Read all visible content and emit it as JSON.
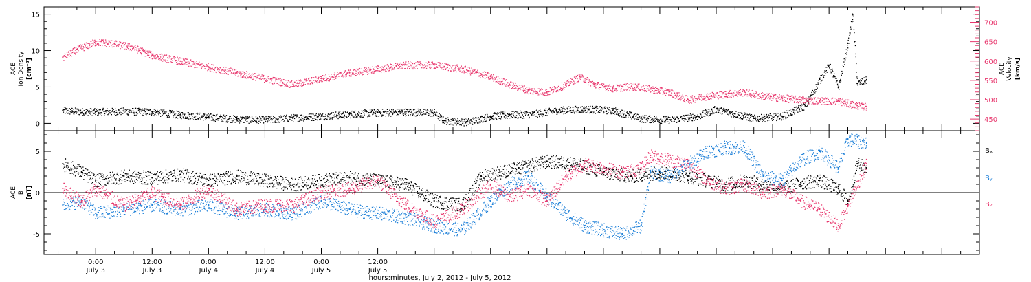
{
  "chart_data": [
    {
      "panel": "plasma",
      "type": "scatter",
      "left_axis": {
        "title": [
          "ACE",
          "Ion Density",
          "[cm⁻³]"
        ],
        "range": [
          -1,
          16
        ],
        "ticks": [
          "0",
          "5",
          "10",
          "15"
        ]
      },
      "right_axis": {
        "title": [
          "ACE",
          "Velocity",
          "[km/s]"
        ],
        "range": [
          420,
          740
        ],
        "ticks": [
          "450",
          "500",
          "550",
          "600",
          "650",
          "700"
        ],
        "color": "#e8386e"
      },
      "series": [
        {
          "color": "#000000",
          "axis": "left",
          "points": [
            [
              -7,
              1.8
            ],
            [
              -5,
              1.7
            ],
            [
              0,
              1.6
            ],
            [
              6,
              1.7
            ],
            [
              12,
              1.6
            ],
            [
              18,
              1.2
            ],
            [
              24,
              0.9
            ],
            [
              30,
              0.6
            ],
            [
              36,
              0.5
            ],
            [
              42,
              0.8
            ],
            [
              48,
              1.0
            ],
            [
              54,
              1.3
            ],
            [
              60,
              1.5
            ],
            [
              66,
              1.6
            ],
            [
              72,
              1.5
            ],
            [
              74,
              0.4
            ],
            [
              79,
              0.2
            ],
            [
              84,
              1.0
            ],
            [
              88,
              1.2
            ],
            [
              93,
              1.3
            ],
            [
              98,
              1.8
            ],
            [
              104,
              2.0
            ],
            [
              110,
              1.8
            ],
            [
              116,
              0.7
            ],
            [
              122,
              0.5
            ],
            [
              128,
              1.0
            ],
            [
              132,
              2.0
            ],
            [
              136,
              1.3
            ],
            [
              140,
              0.7
            ],
            [
              146,
              1.0
            ],
            [
              151,
              2.5
            ],
            [
              154,
              6.0
            ],
            [
              156,
              8.0
            ],
            [
              158,
              5.0
            ],
            [
              160,
              11.0
            ],
            [
              161,
              15.0
            ],
            [
              162,
              5.5
            ],
            [
              164,
              6.0
            ]
          ]
        },
        {
          "color": "#e8386e",
          "axis": "right",
          "points": [
            [
              -7,
              610
            ],
            [
              -4,
              630
            ],
            [
              0,
              650
            ],
            [
              4,
              645
            ],
            [
              8,
              635
            ],
            [
              12,
              615
            ],
            [
              18,
              600
            ],
            [
              24,
              585
            ],
            [
              30,
              570
            ],
            [
              36,
              555
            ],
            [
              42,
              540
            ],
            [
              48,
              555
            ],
            [
              54,
              570
            ],
            [
              60,
              580
            ],
            [
              66,
              590
            ],
            [
              72,
              590
            ],
            [
              78,
              580
            ],
            [
              84,
              560
            ],
            [
              88,
              540
            ],
            [
              92,
              525
            ],
            [
              96,
              520
            ],
            [
              100,
              540
            ],
            [
              103,
              560
            ],
            [
              106,
              540
            ],
            [
              110,
              530
            ],
            [
              114,
              535
            ],
            [
              118,
              528
            ],
            [
              122,
              520
            ],
            [
              126,
              500
            ],
            [
              130,
              510
            ],
            [
              134,
              515
            ],
            [
              138,
              520
            ],
            [
              142,
              510
            ],
            [
              146,
              505
            ],
            [
              150,
              500
            ],
            [
              154,
              498
            ],
            [
              158,
              497
            ],
            [
              162,
              485
            ],
            [
              164,
              482
            ]
          ]
        }
      ]
    },
    {
      "panel": "magnetic-field",
      "type": "scatter",
      "left_axis": {
        "title": [
          "ACE",
          "B",
          "[nT]"
        ],
        "range": [
          -7.5,
          7.5
        ],
        "ticks": [
          "-5",
          "0",
          "5"
        ]
      },
      "legend": [
        "Bₓ",
        "Bᵧ",
        "B₂"
      ],
      "legend_placement": "right",
      "series": [
        {
          "name": "Bx",
          "color": "#000000",
          "points": [
            [
              -7,
              3.5
            ],
            [
              -3,
              2.5
            ],
            [
              0,
              1.5
            ],
            [
              6,
              2.0
            ],
            [
              12,
              1.8
            ],
            [
              18,
              2.2
            ],
            [
              24,
              1.5
            ],
            [
              30,
              2.0
            ],
            [
              36,
              1.5
            ],
            [
              42,
              1.0
            ],
            [
              48,
              1.5
            ],
            [
              54,
              1.8
            ],
            [
              60,
              1.5
            ],
            [
              66,
              1.0
            ],
            [
              72,
              -1.0
            ],
            [
              78,
              -1.5
            ],
            [
              82,
              2.0
            ],
            [
              86,
              2.5
            ],
            [
              90,
              3.0
            ],
            [
              96,
              3.8
            ],
            [
              102,
              3.5
            ],
            [
              108,
              2.5
            ],
            [
              114,
              2.0
            ],
            [
              120,
              2.5
            ],
            [
              126,
              2.0
            ],
            [
              130,
              1.5
            ],
            [
              134,
              1.0
            ],
            [
              138,
              1.5
            ],
            [
              142,
              1.0
            ],
            [
              146,
              0.5
            ],
            [
              150,
              1.2
            ],
            [
              154,
              1.5
            ],
            [
              158,
              0.5
            ],
            [
              160,
              -1.0
            ],
            [
              162,
              3.5
            ],
            [
              164,
              3.0
            ]
          ]
        },
        {
          "name": "By",
          "color": "#1c7fd8",
          "points": [
            [
              -7,
              -1.5
            ],
            [
              -3,
              -1.0
            ],
            [
              0,
              -2.5
            ],
            [
              6,
              -2.0
            ],
            [
              12,
              -1.5
            ],
            [
              18,
              -2.0
            ],
            [
              24,
              -1.5
            ],
            [
              30,
              -2.5
            ],
            [
              36,
              -2.0
            ],
            [
              42,
              -2.5
            ],
            [
              48,
              -1.0
            ],
            [
              54,
              -2.0
            ],
            [
              60,
              -2.5
            ],
            [
              66,
              -3.0
            ],
            [
              72,
              -4.0
            ],
            [
              78,
              -4.5
            ],
            [
              84,
              -1.0
            ],
            [
              88,
              1.0
            ],
            [
              92,
              2.0
            ],
            [
              96,
              -0.5
            ],
            [
              100,
              -2.5
            ],
            [
              104,
              -4.0
            ],
            [
              108,
              -4.5
            ],
            [
              112,
              -5.0
            ],
            [
              116,
              -4.0
            ],
            [
              118,
              2.5
            ],
            [
              122,
              2.0
            ],
            [
              126,
              3.5
            ],
            [
              130,
              5.0
            ],
            [
              134,
              5.5
            ],
            [
              138,
              5.5
            ],
            [
              142,
              2.0
            ],
            [
              146,
              1.5
            ],
            [
              150,
              4.0
            ],
            [
              154,
              5.0
            ],
            [
              158,
              3.0
            ],
            [
              160,
              6.5
            ],
            [
              164,
              6.0
            ]
          ]
        },
        {
          "name": "Bz",
          "color": "#e8386e",
          "points": [
            [
              -7,
              0.5
            ],
            [
              -3,
              -1.0
            ],
            [
              0,
              0.5
            ],
            [
              6,
              -1.5
            ],
            [
              12,
              0.0
            ],
            [
              18,
              -1.5
            ],
            [
              24,
              0.5
            ],
            [
              30,
              -2.0
            ],
            [
              36,
              -1.5
            ],
            [
              42,
              -1.5
            ],
            [
              48,
              0.0
            ],
            [
              54,
              0.5
            ],
            [
              60,
              1.5
            ],
            [
              66,
              -1.5
            ],
            [
              72,
              -3.5
            ],
            [
              78,
              -2.0
            ],
            [
              84,
              1.0
            ],
            [
              88,
              -0.5
            ],
            [
              92,
              0.5
            ],
            [
              96,
              -1.0
            ],
            [
              100,
              2.0
            ],
            [
              104,
              3.5
            ],
            [
              108,
              3.0
            ],
            [
              112,
              2.5
            ],
            [
              116,
              3.0
            ],
            [
              118,
              4.5
            ],
            [
              122,
              4.0
            ],
            [
              126,
              3.5
            ],
            [
              130,
              1.5
            ],
            [
              134,
              0.5
            ],
            [
              138,
              1.0
            ],
            [
              142,
              0.0
            ],
            [
              146,
              0.5
            ],
            [
              150,
              -1.0
            ],
            [
              154,
              -2.0
            ],
            [
              158,
              -4.0
            ],
            [
              160,
              -1.5
            ],
            [
              164,
              3.5
            ]
          ]
        }
      ]
    }
  ],
  "x_axis": {
    "range_hours": [
      -11,
      188
    ],
    "major": [
      {
        "h": 0,
        "time": "0:00",
        "day": "July 3"
      },
      {
        "h": 12,
        "time": "12:00",
        "day": "July 3"
      },
      {
        "h": 24,
        "time": "0:00",
        "day": "July 4"
      },
      {
        "h": 36,
        "time": "12:00",
        "day": "July 4"
      },
      {
        "h": 48,
        "time": "0:00",
        "day": "July 5"
      },
      {
        "h": 60,
        "time": "12:00",
        "day": "July 5"
      }
    ],
    "label": "hours:minutes,  July  2, 2012  -  July  5, 2012"
  },
  "colors": {
    "black": "#000000",
    "pink": "#e8386e",
    "blue": "#1c7fd8"
  }
}
